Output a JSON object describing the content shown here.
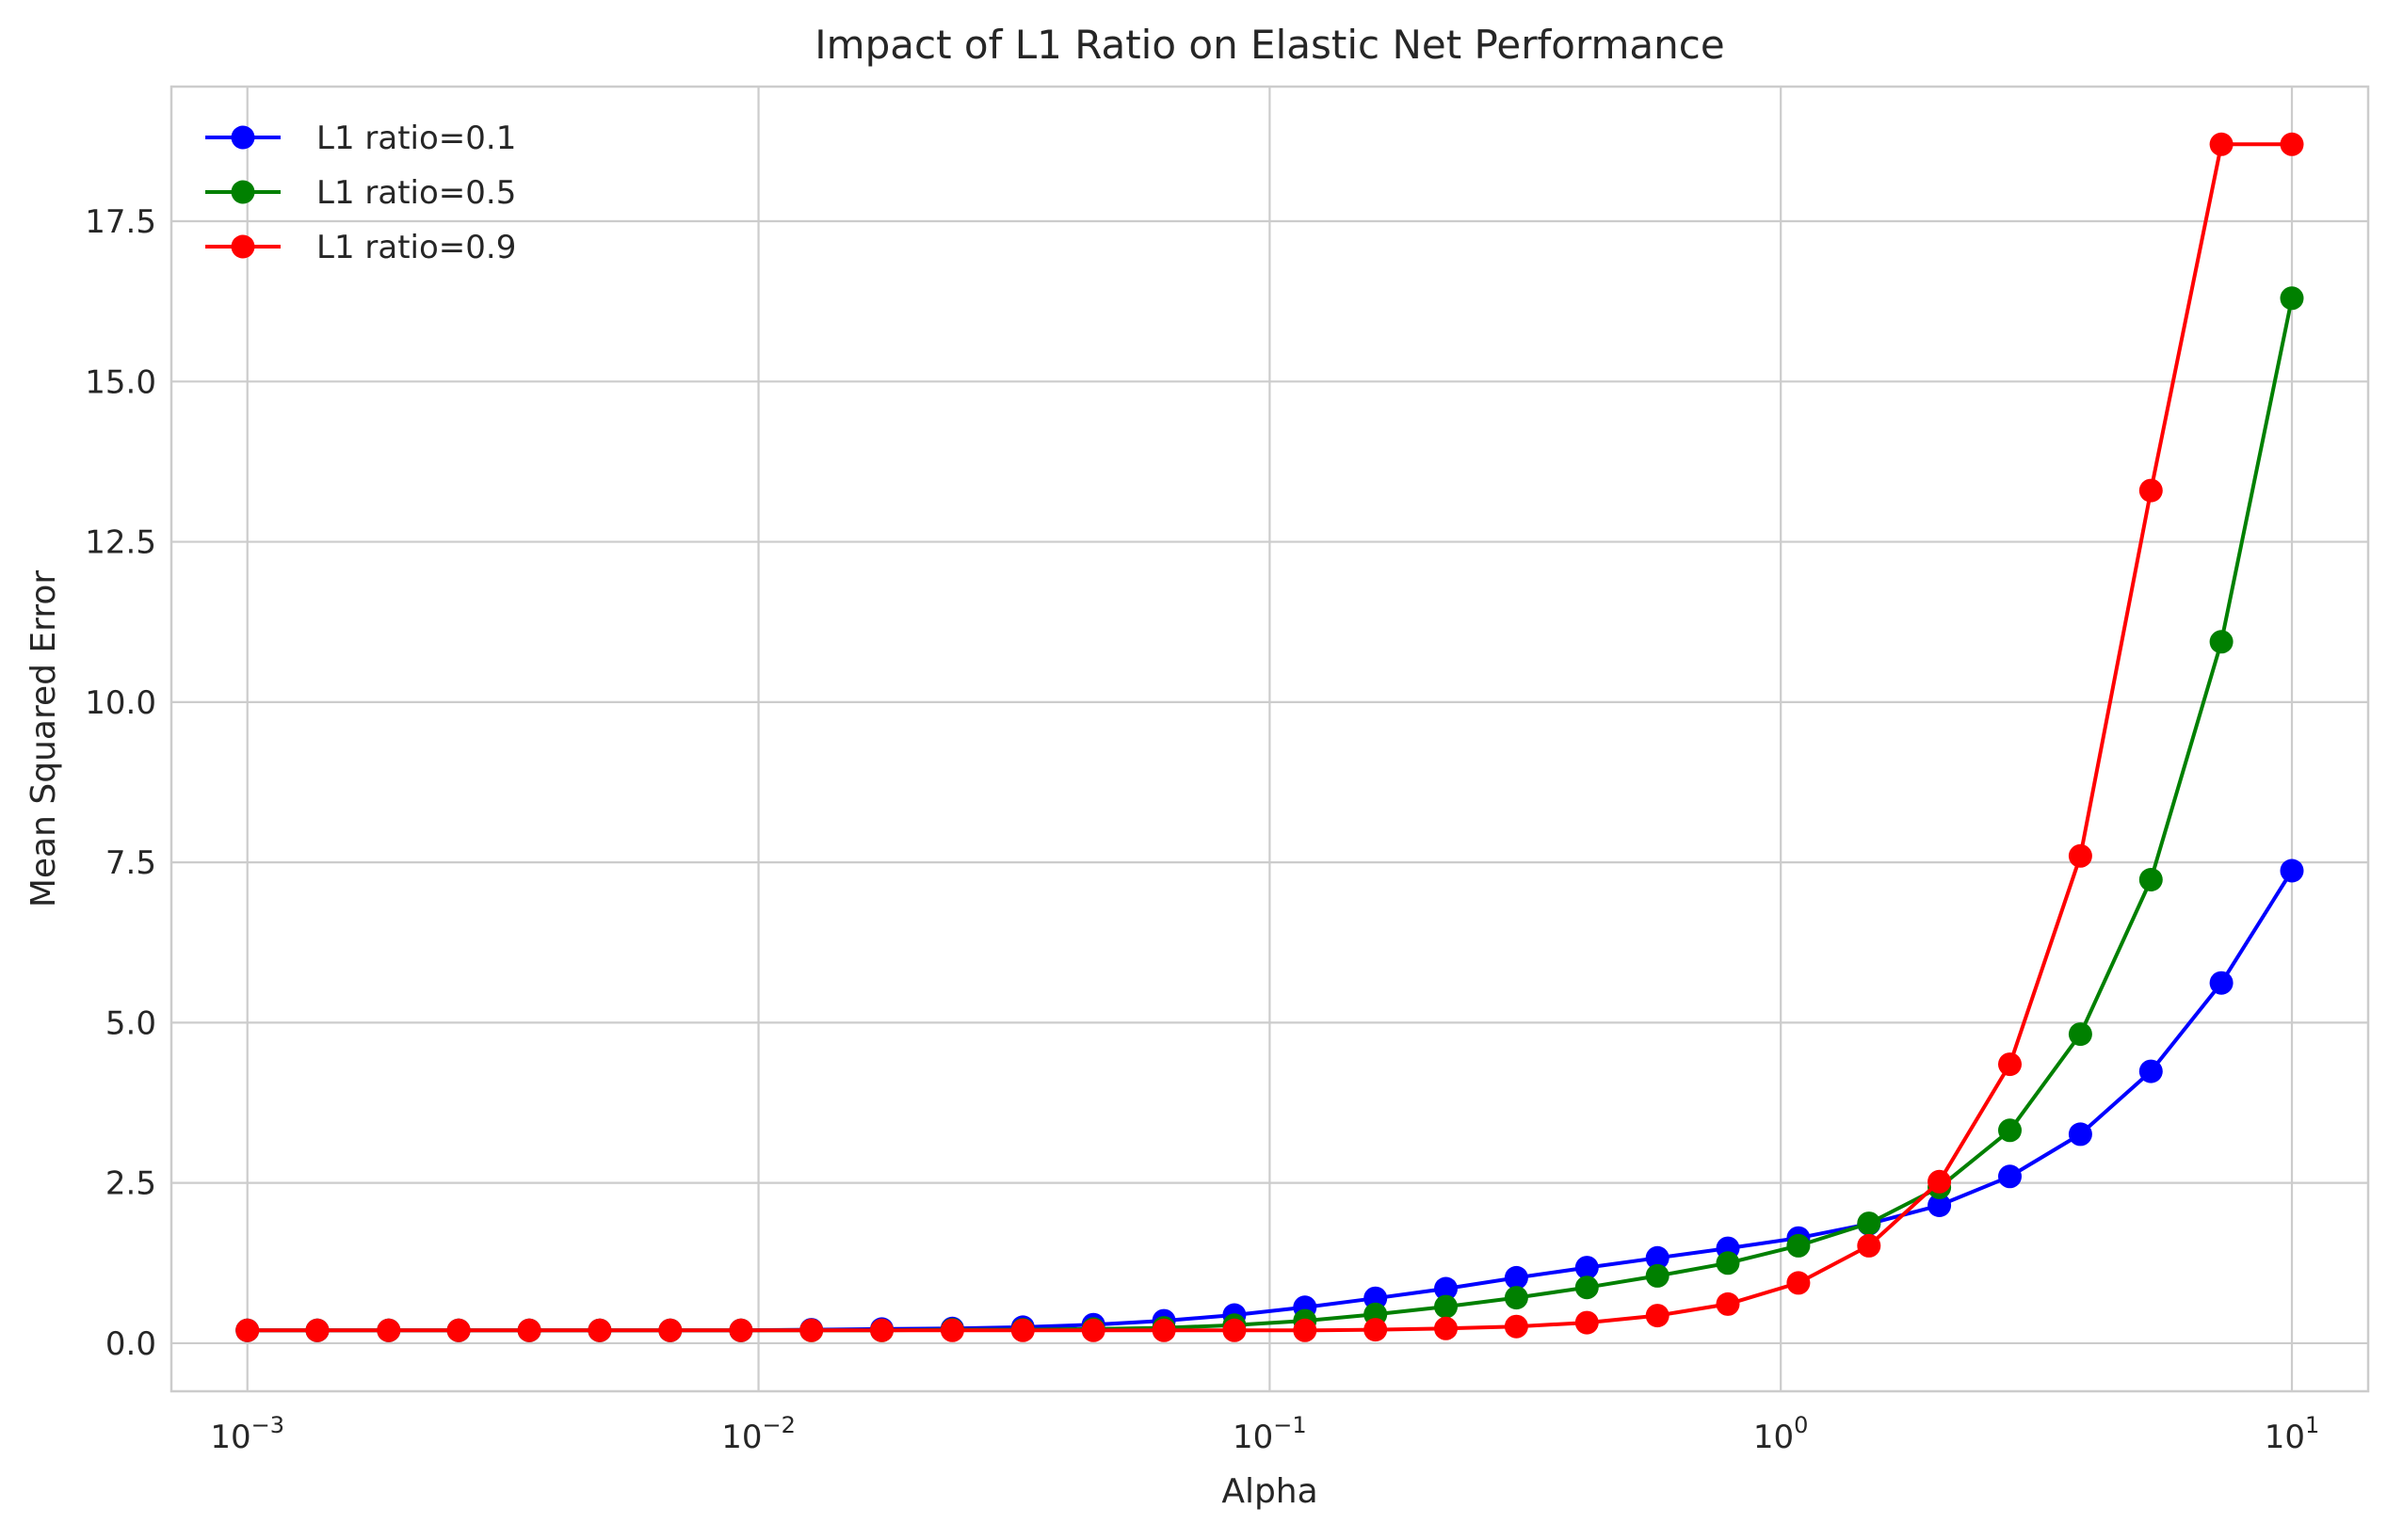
{
  "chart_data": {
    "type": "line",
    "title": "Impact of L1 Ratio on Elastic Net Performance",
    "xlabel": "Alpha",
    "ylabel": "Mean Squared Error",
    "xscale": "log",
    "xlim": [
      0.00071,
      14.1
    ],
    "ylim": [
      -0.75,
      19.6
    ],
    "grid": true,
    "legend_position": "top-left",
    "x_ticks": [
      {
        "base": "10",
        "exp": "−3",
        "value": 0.001
      },
      {
        "base": "10",
        "exp": "−2",
        "value": 0.01
      },
      {
        "base": "10",
        "exp": "−1",
        "value": 0.1
      },
      {
        "base": "10",
        "exp": "0",
        "value": 1
      },
      {
        "base": "10",
        "exp": "1",
        "value": 10
      }
    ],
    "y_ticks": [
      0,
      2.5,
      5,
      7.5,
      10,
      12.5,
      15,
      17.5
    ],
    "y_tick_labels": [
      "0.0",
      "2.5",
      "5.0",
      "7.5",
      "10.0",
      "12.5",
      "15.0",
      "17.5"
    ],
    "x": [
      0.001,
      0.00137,
      0.00189,
      0.00259,
      0.00356,
      0.00489,
      0.00672,
      0.00924,
      0.01269,
      0.01743,
      0.02395,
      0.0329,
      0.0452,
      0.0621,
      0.08532,
      0.11721,
      0.16103,
      0.22122,
      0.30392,
      0.41753,
      0.57362,
      0.78805,
      1.08264,
      1.48735,
      2.04336,
      2.80722,
      3.85662,
      5.29832,
      7.27895,
      10.0
    ],
    "series": [
      {
        "name": "L1 ratio=0.1",
        "color": "#0000ff",
        "values": [
          0.2,
          0.2,
          0.2,
          0.2,
          0.2,
          0.2,
          0.2,
          0.2,
          0.21,
          0.22,
          0.23,
          0.25,
          0.29,
          0.35,
          0.44,
          0.56,
          0.7,
          0.85,
          1.02,
          1.18,
          1.33,
          1.48,
          1.64,
          1.86,
          2.15,
          2.6,
          3.26,
          4.24,
          5.62,
          7.37
        ]
      },
      {
        "name": "L1 ratio=0.5",
        "color": "#008000",
        "values": [
          0.2,
          0.2,
          0.2,
          0.2,
          0.2,
          0.2,
          0.2,
          0.2,
          0.2,
          0.2,
          0.21,
          0.21,
          0.22,
          0.24,
          0.28,
          0.35,
          0.45,
          0.57,
          0.71,
          0.87,
          1.05,
          1.25,
          1.52,
          1.87,
          2.43,
          3.32,
          4.82,
          7.23,
          10.94,
          16.3
        ]
      },
      {
        "name": "L1 ratio=0.9",
        "color": "#ff0000",
        "values": [
          0.2,
          0.2,
          0.2,
          0.2,
          0.2,
          0.2,
          0.2,
          0.2,
          0.2,
          0.2,
          0.2,
          0.2,
          0.2,
          0.2,
          0.2,
          0.2,
          0.21,
          0.23,
          0.26,
          0.32,
          0.43,
          0.61,
          0.94,
          1.52,
          2.52,
          4.35,
          7.6,
          13.3,
          18.7,
          18.7
        ]
      }
    ]
  }
}
